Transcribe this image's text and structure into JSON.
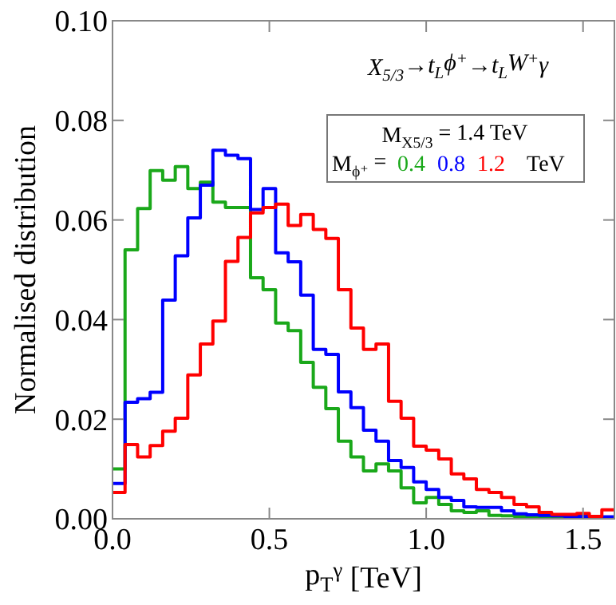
{
  "chart_data": {
    "type": "histogram",
    "xlabel": "p$_{T}$$^{γ}$ [TeV]",
    "ylabel": "Normalised distribution",
    "annotations": [
      "X$_{5/3}$→t$_{L}$ϕ$^{+}$→t$_{L}$W$^{+}$γ",
      "M$_{X5/3}$ = 1.4 TeV",
      "TeV"
    ],
    "legend_title": "M$_{ϕ⁺}$ =",
    "legend": "top right",
    "bins": [
      0,
      0.04,
      0.08,
      0.12,
      0.16,
      0.2,
      0.24,
      0.28,
      0.32,
      0.36,
      0.4,
      0.44,
      0.48,
      0.52,
      0.56,
      0.6,
      0.64,
      0.68,
      0.72,
      0.76,
      0.8,
      0.84,
      0.88,
      0.92,
      0.96,
      1.0,
      1.04,
      1.08,
      1.12,
      1.16,
      1.2,
      1.24,
      1.28,
      1.32,
      1.36,
      1.4,
      1.44,
      1.48,
      1.52,
      1.56,
      1.6
    ],
    "series": [
      {
        "name": "0.4",
        "color": "#1aa81a",
        "values": [
          0.01,
          0.054,
          0.0623,
          0.0699,
          0.068,
          0.0707,
          0.0663,
          0.0676,
          0.0636,
          0.0625,
          0.0625,
          0.0484,
          0.046,
          0.0393,
          0.0378,
          0.0314,
          0.0264,
          0.0221,
          0.0156,
          0.0124,
          0.0096,
          0.011,
          0.0096,
          0.0062,
          0.0032,
          0.0043,
          0.0029,
          0.0016,
          0.0013,
          0.0016,
          0.0007,
          0.0006,
          0.0005,
          0.0005,
          0.0005,
          0.0004,
          0.0004,
          0.0004,
          0.0003,
          0.0003
        ]
      },
      {
        "name": "0.8",
        "color": "#0000ff",
        "values": [
          0.0071,
          0.0234,
          0.0241,
          0.0254,
          0.0439,
          0.0528,
          0.0604,
          0.067,
          0.074,
          0.073,
          0.0723,
          0.0621,
          0.0663,
          0.0534,
          0.0516,
          0.0449,
          0.034,
          0.033,
          0.0255,
          0.0223,
          0.0178,
          0.0156,
          0.0117,
          0.0103,
          0.0074,
          0.0059,
          0.0043,
          0.0037,
          0.0024,
          0.0023,
          0.0023,
          0.0016,
          0.001,
          0.0008,
          0.0007,
          0.0006,
          0.0005,
          0.0005,
          0.0004,
          0.0004
        ]
      },
      {
        "name": "1.2",
        "color": "#ff0000",
        "values": [
          0.0053,
          0.0149,
          0.0124,
          0.0147,
          0.0176,
          0.0202,
          0.0289,
          0.0351,
          0.0397,
          0.0517,
          0.0565,
          0.0614,
          0.0625,
          0.0632,
          0.0589,
          0.0611,
          0.0581,
          0.0563,
          0.046,
          0.0383,
          0.034,
          0.0351,
          0.0236,
          0.0202,
          0.0146,
          0.0138,
          0.012,
          0.009,
          0.008,
          0.0059,
          0.0053,
          0.0043,
          0.0029,
          0.0024,
          0.0013,
          0.0009,
          0.0009,
          0.0011,
          0.0005,
          0.0018
        ]
      }
    ],
    "xlim": [
      0,
      1.6
    ],
    "ylim": [
      0,
      0.1
    ],
    "xticks": [
      {
        "value": 0,
        "label": "0.0"
      },
      0.5,
      {
        "value": 1,
        "label": "1.0"
      },
      1.5
    ],
    "yticks": [
      {
        "value": 0,
        "label": "0.00"
      },
      0.02,
      0.04,
      0.06,
      0.08,
      {
        "value": 0.1,
        "label": "0.10"
      }
    ]
  }
}
